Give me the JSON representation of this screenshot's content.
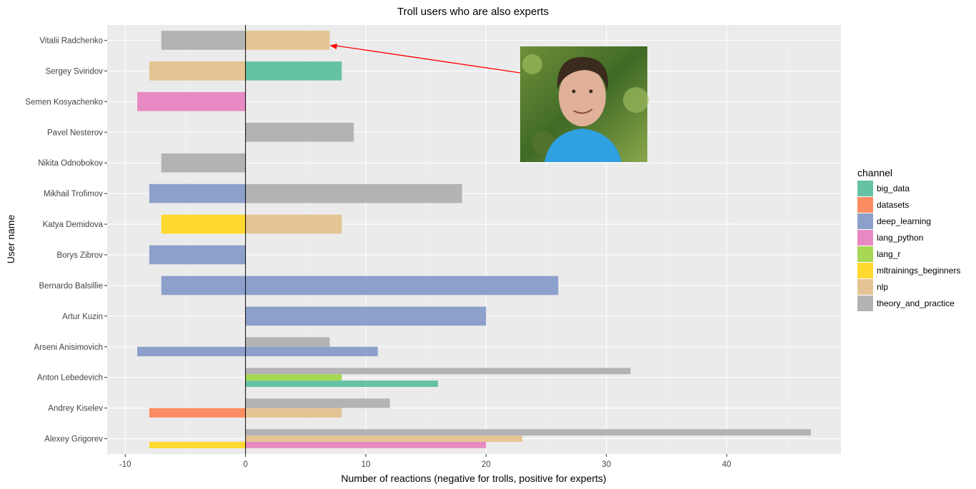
{
  "chart_data": {
    "type": "bar",
    "title": "Troll users who are also experts",
    "xlabel": "Number of reactions (negative for trolls, positive for experts)",
    "ylabel": "User name",
    "xlim": [
      -11.5,
      49.5
    ],
    "xticks": [
      -10,
      0,
      10,
      20,
      30,
      40
    ],
    "grid": true,
    "legend_position": "right",
    "legend_title": "channel",
    "channels": [
      {
        "name": "big_data",
        "color": "#66c2a5"
      },
      {
        "name": "datasets",
        "color": "#fc8d62"
      },
      {
        "name": "deep_learning",
        "color": "#8da0cb"
      },
      {
        "name": "lang_python",
        "color": "#e78ac3"
      },
      {
        "name": "lang_r",
        "color": "#a6d854"
      },
      {
        "name": "mltrainings_beginners",
        "color": "#ffd92f"
      },
      {
        "name": "nlp",
        "color": "#e5c494"
      },
      {
        "name": "theory_and_practice",
        "color": "#b3b3b3"
      }
    ],
    "users": [
      "Vitalii Radchenko",
      "Sergey Sviridov",
      "Semen Kosyachenko",
      "Pavel Nesterov",
      "Nikita Odnobokov",
      "Mikhail Trofimov",
      "Katya Demidova",
      "Borys Zibrov",
      "Bernardo Balsillie",
      "Artur Kuzin",
      "Arseni Anisimovich",
      "Anton Lebedevich",
      "Andrey Kiselev",
      "Alexey Grigorev"
    ],
    "bars": [
      {
        "user": "Vitalii Radchenko",
        "channel": "theory_and_practice",
        "value": -7
      },
      {
        "user": "Vitalii Radchenko",
        "channel": "nlp",
        "value": 7
      },
      {
        "user": "Sergey Sviridov",
        "channel": "nlp",
        "value": -8
      },
      {
        "user": "Sergey Sviridov",
        "channel": "big_data",
        "value": 8
      },
      {
        "user": "Semen Kosyachenko",
        "channel": "lang_python",
        "value": -9
      },
      {
        "user": "Pavel Nesterov",
        "channel": "theory_and_practice",
        "value": 9
      },
      {
        "user": "Nikita Odnobokov",
        "channel": "theory_and_practice",
        "value": -7
      },
      {
        "user": "Mikhail Trofimov",
        "channel": "deep_learning",
        "value": -8
      },
      {
        "user": "Mikhail Trofimov",
        "channel": "theory_and_practice",
        "value": 18
      },
      {
        "user": "Katya Demidova",
        "channel": "mltrainings_beginners",
        "value": -7
      },
      {
        "user": "Katya Demidova",
        "channel": "nlp",
        "value": 8
      },
      {
        "user": "Borys Zibrov",
        "channel": "deep_learning",
        "value": -8
      },
      {
        "user": "Bernardo Balsillie",
        "channel": "deep_learning",
        "value": -7
      },
      {
        "user": "Bernardo Balsillie",
        "channel": "deep_learning",
        "value": 26
      },
      {
        "user": "Artur Kuzin",
        "channel": "deep_learning",
        "value": 20
      },
      {
        "user": "Arseni Anisimovich",
        "channel": "deep_learning",
        "value": -9
      },
      {
        "user": "Arseni Anisimovich",
        "channel": "deep_learning",
        "value": 11
      },
      {
        "user": "Arseni Anisimovich",
        "channel": "theory_and_practice",
        "value": 7
      },
      {
        "user": "Anton Lebedevich",
        "channel": "big_data",
        "value": 16
      },
      {
        "user": "Anton Lebedevich",
        "channel": "lang_r",
        "value": 8
      },
      {
        "user": "Anton Lebedevich",
        "channel": "theory_and_practice",
        "value": 32
      },
      {
        "user": "Andrey Kiselev",
        "channel": "datasets",
        "value": -8
      },
      {
        "user": "Andrey Kiselev",
        "channel": "nlp",
        "value": 8
      },
      {
        "user": "Andrey Kiselev",
        "channel": "theory_and_practice",
        "value": 12
      },
      {
        "user": "Alexey Grigorev",
        "channel": "mltrainings_beginners",
        "value": -8
      },
      {
        "user": "Alexey Grigorev",
        "channel": "lang_python",
        "value": 20
      },
      {
        "user": "Alexey Grigorev",
        "channel": "nlp",
        "value": 23
      },
      {
        "user": "Alexey Grigorev",
        "channel": "theory_and_practice",
        "value": 47
      }
    ],
    "annotation": {
      "type": "arrow-with-photo",
      "points_to": {
        "user": "Vitalii Radchenko",
        "channel": "nlp",
        "value": 7
      },
      "color": "#ff0000"
    }
  }
}
